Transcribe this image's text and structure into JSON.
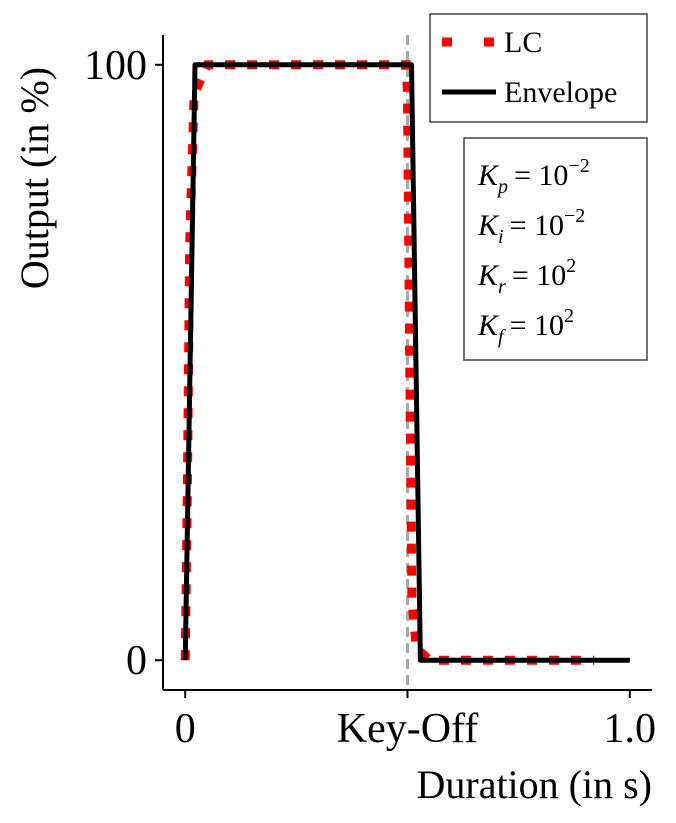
{
  "chart_data": {
    "type": "line",
    "xlabel": "Duration (in s)",
    "ylabel": "Output (in %)",
    "xlim": [
      -0.05,
      1.05
    ],
    "ylim": [
      -5,
      105
    ],
    "xticks": [
      0,
      {
        "value": 0.5,
        "label": "Key-Off"
      },
      {
        "value": 1,
        "label": "1.0"
      }
    ],
    "yticks": [
      0,
      100
    ],
    "vline": 0.5,
    "legend": "upper right",
    "series": [
      {
        "name": "LC",
        "color": "#ff0000",
        "style": "dotted",
        "x": [
          0,
          0.005,
          0.01,
          0.02,
          0.05,
          0.497,
          0.5,
          0.505,
          0.51,
          0.52,
          0.55,
          0.92
        ],
        "values": [
          0,
          30,
          70,
          95,
          100,
          100,
          95,
          50,
          10,
          2,
          0,
          0
        ]
      },
      {
        "name": "Envelope",
        "color": "#000000",
        "style": "solid",
        "x": [
          0,
          0.022,
          0.509,
          0.529,
          1.0
        ],
        "values": [
          0,
          100,
          100,
          0,
          0
        ]
      }
    ],
    "annotation": [
      {
        "symbol": "K",
        "sub": "p",
        "rel": "= 10",
        "exp": "−2"
      },
      {
        "symbol": "K",
        "sub": "i",
        "rel": "= 10",
        "exp": "−2"
      },
      {
        "symbol": "K",
        "sub": "r",
        "rel": "= 10",
        "exp": "2"
      },
      {
        "symbol": "K",
        "sub": "f",
        "rel": "= 10",
        "exp": "2"
      }
    ]
  }
}
